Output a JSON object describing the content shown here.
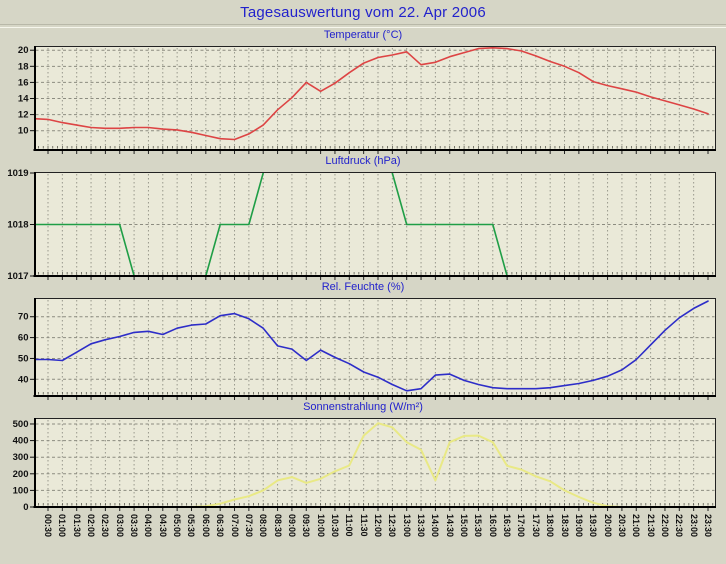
{
  "header": {
    "title": "Tagesauswertung vom 22. Apr 2006"
  },
  "colors": {
    "page_bg": "#d6d6c6",
    "plot_bg": "#eae9d8",
    "grid_vertical": "#98988c",
    "grid_horizontal": "#8c8c80",
    "axis": "#111111",
    "title_blue": "#2222cc",
    "temperature_line": "#dd4444",
    "pressure_line": "#1f9e46",
    "humidity_line": "#2d2dc8",
    "radiation_line": "#e9e985"
  },
  "x_axis": {
    "values_start": "00:00",
    "interval_minutes": 30,
    "labels": [
      "00:30",
      "01:00",
      "01:30",
      "02:00",
      "02:30",
      "03:00",
      "03:30",
      "04:00",
      "04:30",
      "05:00",
      "05:30",
      "06:00",
      "06:30",
      "07:00",
      "07:30",
      "08:00",
      "08:30",
      "09:00",
      "09:30",
      "10:00",
      "10:30",
      "11:00",
      "11:30",
      "12:00",
      "12:30",
      "13:00",
      "13:30",
      "14:00",
      "14:30",
      "15:00",
      "15:30",
      "16:00",
      "16:30",
      "17:00",
      "17:30",
      "18:00",
      "18:30",
      "19:00",
      "19:30",
      "20:00",
      "20:30",
      "21:00",
      "21:30",
      "22:00",
      "22:30",
      "23:00",
      "23:30"
    ]
  },
  "chart_data": [
    {
      "type": "line",
      "title": "Temperatur (°C)",
      "color_key": "temperature_line",
      "y_ticks": [
        20,
        18,
        16,
        14,
        12,
        10
      ],
      "ylim": [
        7.6,
        20.4
      ],
      "values": [
        11.5,
        11.4,
        11.0,
        10.7,
        10.4,
        10.3,
        10.3,
        10.4,
        10.4,
        10.2,
        10.1,
        9.8,
        9.4,
        9.0,
        8.9,
        9.6,
        10.7,
        12.6,
        14.1,
        16.0,
        14.9,
        15.9,
        17.2,
        18.4,
        19.1,
        19.4,
        19.8,
        18.2,
        18.5,
        19.2,
        19.7,
        20.2,
        20.3,
        20.2,
        19.9,
        19.3,
        18.6,
        18.0,
        17.2,
        16.1,
        15.6,
        15.2,
        14.8,
        14.2,
        13.7,
        13.2,
        12.7,
        12.1
      ]
    },
    {
      "type": "line",
      "title": "Luftdruck (hPa)",
      "color_key": "pressure_line",
      "y_ticks": [
        1019,
        1018,
        1017
      ],
      "ylim": [
        1017,
        1019
      ],
      "note": "line exceeds 1019 between ~08:00 and ~12:30 and is clipped at the top of the plot",
      "values": [
        1018,
        1018,
        1018,
        1018,
        1018,
        1018,
        1018,
        1017,
        1017,
        1017,
        1017,
        1017,
        1017,
        1018,
        1018,
        1018,
        1019,
        1019.7,
        1019.7,
        1019.7,
        1019.7,
        1019.7,
        1019.7,
        1019.7,
        1019.7,
        1019,
        1018,
        1018,
        1018,
        1018,
        1018,
        1018,
        1018,
        1017,
        1017,
        1017,
        1017,
        1017,
        1017,
        1017,
        1017,
        1017,
        1017,
        1017,
        1017,
        1017,
        1017,
        1017
      ]
    },
    {
      "type": "line",
      "title": "Rel. Feuchte (%)",
      "color_key": "humidity_line",
      "y_ticks": [
        70,
        60,
        50,
        40
      ],
      "ylim": [
        32,
        78.5
      ],
      "values": [
        49.5,
        49.5,
        49.0,
        53.0,
        57.0,
        59.0,
        60.5,
        62.5,
        63.0,
        61.5,
        64.5,
        66.0,
        66.5,
        70.5,
        71.5,
        69.0,
        64.5,
        56.0,
        54.5,
        49.0,
        54.0,
        50.5,
        47.5,
        43.5,
        41.0,
        37.5,
        34.5,
        35.5,
        42.0,
        42.5,
        39.5,
        37.5,
        36.0,
        35.5,
        35.5,
        35.5,
        36.0,
        37.0,
        38.0,
        39.5,
        41.5,
        44.5,
        49.5,
        56.5,
        63.5,
        69.5,
        74.0,
        77.5
      ]
    },
    {
      "type": "line",
      "title": "Sonnenstrahlung (W/m²)",
      "color_key": "radiation_line",
      "y_ticks": [
        500,
        400,
        300,
        200,
        100,
        0
      ],
      "ylim": [
        0,
        530
      ],
      "values": [
        0,
        0,
        0,
        0,
        0,
        0,
        0,
        0,
        0,
        0,
        0,
        0,
        5,
        20,
        45,
        65,
        100,
        160,
        180,
        145,
        170,
        215,
        250,
        430,
        505,
        480,
        390,
        345,
        160,
        390,
        428,
        430,
        390,
        248,
        225,
        185,
        155,
        100,
        60,
        25,
        5,
        0,
        0,
        0,
        0,
        0,
        0,
        0
      ]
    }
  ]
}
